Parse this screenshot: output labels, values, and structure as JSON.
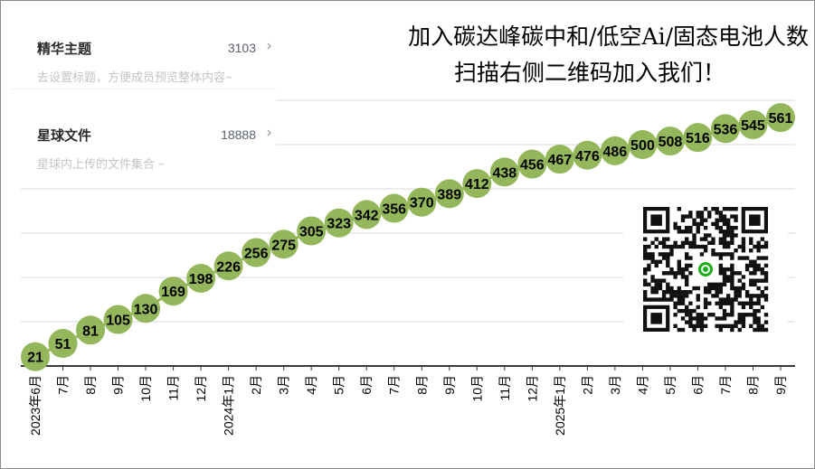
{
  "chart_data": {
    "type": "line",
    "title": "",
    "xlabel": "",
    "ylabel": "",
    "categories": [
      "2023年6月",
      "7月",
      "8月",
      "9月",
      "10月",
      "11月",
      "12月",
      "2024年1月",
      "2月",
      "3月",
      "4月",
      "5月",
      "6月",
      "7月",
      "8月",
      "9月",
      "10月",
      "11月",
      "12月",
      "2025年1月",
      "2月",
      "3月",
      "4月",
      "5月",
      "6月",
      "7月",
      "8月",
      "9月"
    ],
    "series": [
      {
        "values": [
          21,
          51,
          81,
          105,
          130,
          169,
          198,
          226,
          256,
          275,
          305,
          323,
          342,
          356,
          370,
          389,
          412,
          438,
          456,
          467,
          476,
          486,
          500,
          508,
          516,
          536,
          545,
          561
        ]
      }
    ],
    "ylim": [
      0,
      600
    ],
    "grid": true,
    "marker_color": "#93b75a",
    "line_color": "#93b75a",
    "label_color": "#000000"
  },
  "headline": {
    "line1": "加入碳达峰碳中和/低空Ai/固态电池人数",
    "line2": "扫描右侧二维码加入我们！"
  },
  "panel": {
    "rows": [
      {
        "title": "精华主题",
        "count": "3103",
        "chevron": "›",
        "subtitle": "去设置标题，方便成员预览整体内容~"
      },
      {
        "title": "星球文件",
        "count": "18888",
        "chevron": "›",
        "subtitle": "星球内上传的文件集合 ~"
      }
    ]
  },
  "qr": {
    "icon": "qr-code-icon",
    "center_color": "#1aad19"
  }
}
